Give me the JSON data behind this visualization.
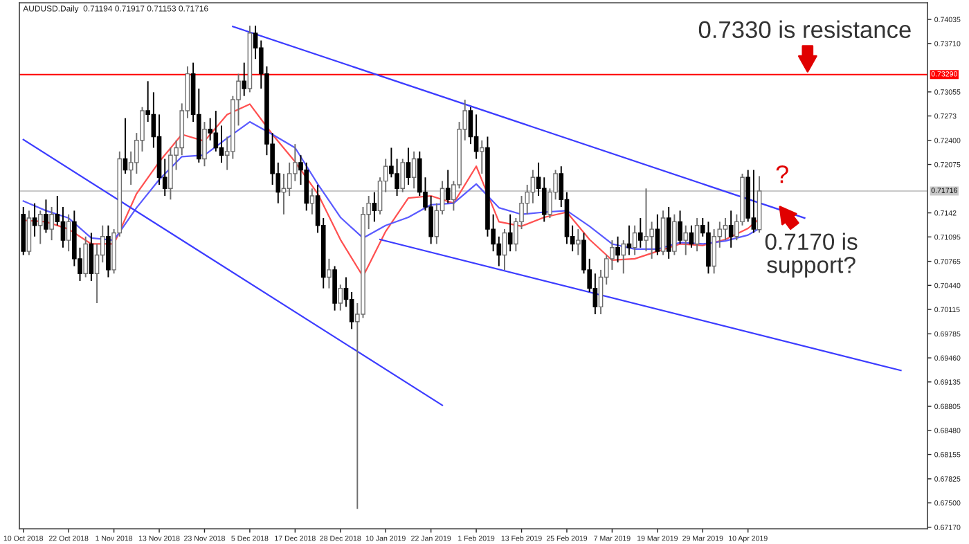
{
  "chart_data": {
    "type": "candlestick",
    "title": "AUDUSD.Daily  0.71194 0.71917 0.71153 0.71716",
    "categories": [
      "10 Oct 2018",
      null,
      null,
      null,
      null,
      null,
      null,
      null,
      "22 Oct 2018",
      null,
      null,
      null,
      null,
      null,
      null,
      null,
      "1 Nov 2018",
      null,
      null,
      null,
      null,
      null,
      null,
      null,
      "13 Nov 2018",
      null,
      null,
      null,
      null,
      null,
      null,
      null,
      "23 Nov 2018",
      null,
      null,
      null,
      null,
      null,
      null,
      null,
      "5 Dec 2018",
      null,
      null,
      null,
      null,
      null,
      null,
      null,
      "17 Dec 2018",
      null,
      null,
      null,
      null,
      null,
      null,
      null,
      "28 Dec 2018",
      null,
      null,
      null,
      null,
      null,
      null,
      null,
      "10 Jan 2019",
      null,
      null,
      null,
      null,
      null,
      null,
      null,
      "22 Jan 2019",
      null,
      null,
      null,
      null,
      null,
      null,
      null,
      "1 Feb 2019",
      null,
      null,
      null,
      null,
      null,
      null,
      null,
      "13 Feb 2019",
      null,
      null,
      null,
      null,
      null,
      null,
      null,
      "25 Feb 2019",
      null,
      null,
      null,
      null,
      null,
      null,
      null,
      "7 Mar 2019",
      null,
      null,
      null,
      null,
      null,
      null,
      null,
      "19 Mar 2019",
      null,
      null,
      null,
      null,
      null,
      null,
      null,
      "29 Mar 2019",
      null,
      null,
      null,
      null,
      null,
      null,
      null,
      "10 Apr 2019",
      null,
      null,
      null,
      null,
      null,
      null,
      null,
      null,
      null,
      null,
      null,
      null,
      null,
      null,
      null,
      null,
      null,
      null,
      null,
      null,
      null,
      null,
      null,
      null,
      null,
      null,
      null,
      null,
      null,
      null,
      null
    ],
    "ohlc": [
      [
        0.714,
        0.715,
        0.7085,
        0.709
      ],
      [
        0.709,
        0.7145,
        0.7085,
        0.7135
      ],
      [
        0.7135,
        0.7155,
        0.711,
        0.7125
      ],
      [
        0.7125,
        0.7145,
        0.71,
        0.714
      ],
      [
        0.714,
        0.716,
        0.7115,
        0.712
      ],
      [
        0.712,
        0.715,
        0.7105,
        0.714
      ],
      [
        0.714,
        0.7165,
        0.7125,
        0.713
      ],
      [
        0.713,
        0.715,
        0.7095,
        0.7105
      ],
      [
        0.7105,
        0.714,
        0.709,
        0.713
      ],
      [
        0.713,
        0.7145,
        0.707,
        0.708
      ],
      [
        0.708,
        0.7095,
        0.705,
        0.706
      ],
      [
        0.706,
        0.711,
        0.7055,
        0.71
      ],
      [
        0.71,
        0.7115,
        0.705,
        0.706
      ],
      [
        0.706,
        0.71,
        0.702,
        0.7085
      ],
      [
        0.7085,
        0.7125,
        0.7075,
        0.711
      ],
      [
        0.711,
        0.7125,
        0.7055,
        0.7065
      ],
      [
        0.7065,
        0.712,
        0.706,
        0.7115
      ],
      [
        0.7115,
        0.7225,
        0.711,
        0.7215
      ],
      [
        0.7215,
        0.727,
        0.7195,
        0.72
      ],
      [
        0.72,
        0.7225,
        0.718,
        0.721
      ],
      [
        0.721,
        0.725,
        0.7195,
        0.724
      ],
      [
        0.724,
        0.7285,
        0.7225,
        0.728
      ],
      [
        0.728,
        0.732,
        0.7265,
        0.7275
      ],
      [
        0.7275,
        0.7305,
        0.723,
        0.7245
      ],
      [
        0.7245,
        0.7275,
        0.718,
        0.719
      ],
      [
        0.719,
        0.7215,
        0.7165,
        0.7175
      ],
      [
        0.7175,
        0.723,
        0.716,
        0.722
      ],
      [
        0.722,
        0.724,
        0.72,
        0.723
      ],
      [
        0.723,
        0.729,
        0.722,
        0.728
      ],
      [
        0.728,
        0.734,
        0.727,
        0.733
      ],
      [
        0.733,
        0.7345,
        0.7265,
        0.7275
      ],
      [
        0.7275,
        0.731,
        0.721,
        0.7215
      ],
      [
        0.7215,
        0.7265,
        0.7205,
        0.7255
      ],
      [
        0.7255,
        0.727,
        0.724,
        0.725
      ],
      [
        0.725,
        0.728,
        0.7225,
        0.723
      ],
      [
        0.723,
        0.726,
        0.721,
        0.722
      ],
      [
        0.722,
        0.7245,
        0.72,
        0.7225
      ],
      [
        0.7225,
        0.73,
        0.7215,
        0.7295
      ],
      [
        0.7295,
        0.733,
        0.726,
        0.732
      ],
      [
        0.732,
        0.7345,
        0.73,
        0.731
      ],
      [
        0.731,
        0.7395,
        0.7305,
        0.7385
      ],
      [
        0.7385,
        0.7395,
        0.735,
        0.7365
      ],
      [
        0.7365,
        0.7375,
        0.731,
        0.733
      ],
      [
        0.733,
        0.734,
        0.722,
        0.7235
      ],
      [
        0.7235,
        0.725,
        0.718,
        0.7195
      ],
      [
        0.7195,
        0.721,
        0.7155,
        0.717
      ],
      [
        0.717,
        0.7195,
        0.714,
        0.7175
      ],
      [
        0.7175,
        0.721,
        0.7165,
        0.7195
      ],
      [
        0.7195,
        0.7235,
        0.7185,
        0.721
      ],
      [
        0.721,
        0.722,
        0.718,
        0.72
      ],
      [
        0.72,
        0.721,
        0.7145,
        0.7155
      ],
      [
        0.7155,
        0.7175,
        0.714,
        0.7165
      ],
      [
        0.7165,
        0.718,
        0.7115,
        0.7125
      ],
      [
        0.7125,
        0.7135,
        0.704,
        0.7055
      ],
      [
        0.7055,
        0.708,
        0.704,
        0.7065
      ],
      [
        0.7065,
        0.707,
        0.701,
        0.702
      ],
      [
        0.702,
        0.7045,
        0.701,
        0.704
      ],
      [
        0.704,
        0.7055,
        0.7015,
        0.7025
      ],
      [
        0.7025,
        0.7035,
        0.6985,
        0.6995
      ],
      [
        0.6995,
        0.702,
        0.6742,
        0.7005
      ],
      [
        0.7005,
        0.715,
        0.7,
        0.714
      ],
      [
        0.714,
        0.7165,
        0.712,
        0.7155
      ],
      [
        0.7155,
        0.717,
        0.713,
        0.7145
      ],
      [
        0.7145,
        0.719,
        0.714,
        0.7185
      ],
      [
        0.7185,
        0.7215,
        0.717,
        0.7205
      ],
      [
        0.7205,
        0.723,
        0.719,
        0.7195
      ],
      [
        0.7195,
        0.7215,
        0.7165,
        0.7175
      ],
      [
        0.7175,
        0.7215,
        0.717,
        0.721
      ],
      [
        0.721,
        0.723,
        0.718,
        0.719
      ],
      [
        0.719,
        0.7225,
        0.7175,
        0.7215
      ],
      [
        0.7215,
        0.7225,
        0.7165,
        0.717
      ],
      [
        0.717,
        0.719,
        0.7145,
        0.715
      ],
      [
        0.715,
        0.7165,
        0.71,
        0.711
      ],
      [
        0.711,
        0.7155,
        0.71,
        0.7145
      ],
      [
        0.7145,
        0.7185,
        0.714,
        0.7175
      ],
      [
        0.7175,
        0.72,
        0.7155,
        0.716
      ],
      [
        0.716,
        0.7185,
        0.7145,
        0.718
      ],
      [
        0.718,
        0.7265,
        0.7175,
        0.7255
      ],
      [
        0.7255,
        0.7295,
        0.724,
        0.728
      ],
      [
        0.728,
        0.7285,
        0.7235,
        0.7245
      ],
      [
        0.7245,
        0.7275,
        0.7215,
        0.7225
      ],
      [
        0.7225,
        0.724,
        0.7195,
        0.723
      ],
      [
        0.723,
        0.7245,
        0.711,
        0.712
      ],
      [
        0.712,
        0.714,
        0.709,
        0.71
      ],
      [
        0.71,
        0.711,
        0.707,
        0.7085
      ],
      [
        0.7085,
        0.712,
        0.7065,
        0.7115
      ],
      [
        0.7115,
        0.714,
        0.709,
        0.71
      ],
      [
        0.71,
        0.7135,
        0.709,
        0.713
      ],
      [
        0.713,
        0.7165,
        0.712,
        0.7155
      ],
      [
        0.7155,
        0.718,
        0.714,
        0.717
      ],
      [
        0.717,
        0.72,
        0.7155,
        0.719
      ],
      [
        0.719,
        0.721,
        0.7165,
        0.7175
      ],
      [
        0.7175,
        0.719,
        0.713,
        0.714
      ],
      [
        0.714,
        0.7175,
        0.7135,
        0.717
      ],
      [
        0.717,
        0.72,
        0.716,
        0.7195
      ],
      [
        0.7195,
        0.7205,
        0.715,
        0.716
      ],
      [
        0.716,
        0.717,
        0.71,
        0.711
      ],
      [
        0.711,
        0.7125,
        0.709,
        0.71
      ],
      [
        0.71,
        0.712,
        0.7085,
        0.7105
      ],
      [
        0.7105,
        0.7115,
        0.706,
        0.7065
      ],
      [
        0.7065,
        0.708,
        0.7035,
        0.704
      ],
      [
        0.704,
        0.706,
        0.7005,
        0.7015
      ],
      [
        0.7015,
        0.7065,
        0.7005,
        0.7055
      ],
      [
        0.7055,
        0.7085,
        0.7045,
        0.708
      ],
      [
        0.708,
        0.7105,
        0.7065,
        0.7095
      ],
      [
        0.7095,
        0.711,
        0.7075,
        0.7085
      ],
      [
        0.7085,
        0.7105,
        0.706,
        0.71
      ],
      [
        0.71,
        0.7125,
        0.7085,
        0.7095
      ],
      [
        0.7095,
        0.7125,
        0.7085,
        0.7115
      ],
      [
        0.7115,
        0.7135,
        0.7095,
        0.7105
      ],
      [
        0.7105,
        0.7175,
        0.709,
        0.711
      ],
      [
        0.711,
        0.713,
        0.708,
        0.712
      ],
      [
        0.712,
        0.714,
        0.7085,
        0.709
      ],
      [
        0.709,
        0.7145,
        0.7085,
        0.7135
      ],
      [
        0.7135,
        0.715,
        0.708,
        0.709
      ],
      [
        0.709,
        0.714,
        0.7085,
        0.713
      ],
      [
        0.713,
        0.7145,
        0.71,
        0.7105
      ],
      [
        0.7105,
        0.7125,
        0.7085,
        0.7115
      ],
      [
        0.7115,
        0.7125,
        0.7095,
        0.71
      ],
      [
        0.71,
        0.7135,
        0.709,
        0.7125
      ],
      [
        0.7125,
        0.7135,
        0.711,
        0.7115
      ],
      [
        0.7115,
        0.713,
        0.706,
        0.707
      ],
      [
        0.707,
        0.712,
        0.706,
        0.711
      ],
      [
        0.711,
        0.713,
        0.7095,
        0.712
      ],
      [
        0.712,
        0.7135,
        0.7105,
        0.7125
      ],
      [
        0.7125,
        0.7145,
        0.7095,
        0.711
      ],
      [
        0.711,
        0.714,
        0.7105,
        0.713
      ],
      [
        0.713,
        0.7195,
        0.7125,
        0.719
      ],
      [
        0.719,
        0.72,
        0.713,
        0.7135
      ],
      [
        0.7135,
        0.72,
        0.7115,
        0.712
      ],
      [
        0.71194,
        0.71917,
        0.71153,
        0.71716
      ],
      null,
      null,
      null,
      null,
      null,
      null,
      null,
      null,
      null,
      null,
      null,
      null,
      null,
      null,
      null,
      null,
      null,
      null,
      null,
      null,
      null,
      null,
      null,
      null,
      null,
      null,
      null,
      null,
      null
    ],
    "series": [
      {
        "type": "line",
        "color": "#ff5050",
        "values": [
          0.7132,
          null,
          null,
          null,
          0.713,
          null,
          null,
          null,
          0.712,
          null,
          null,
          null,
          0.71,
          null,
          null,
          null,
          0.71,
          null,
          null,
          null,
          0.7168,
          null,
          null,
          null,
          0.7211,
          null,
          null,
          null,
          0.7248,
          null,
          null,
          null,
          0.7239,
          null,
          null,
          null,
          0.7275,
          null,
          null,
          null,
          0.7289,
          null,
          null,
          null,
          0.7248,
          null,
          null,
          null,
          0.7211,
          null,
          null,
          null,
          0.7168,
          null,
          null,
          null,
          0.7106,
          null,
          null,
          null,
          0.7056,
          null,
          null,
          null,
          0.7117,
          null,
          null,
          null,
          0.7162,
          null,
          null,
          null,
          0.7165,
          null,
          null,
          null,
          0.7155,
          null,
          null,
          null,
          0.7205,
          null,
          null,
          null,
          0.713,
          null,
          null,
          null,
          0.7124,
          null,
          null,
          null,
          0.7136,
          null,
          null,
          null,
          0.7143,
          null,
          null,
          null,
          0.7106,
          null,
          null,
          null,
          0.7078,
          null,
          null,
          null,
          0.708,
          null,
          null,
          null,
          0.709,
          null,
          null,
          null,
          0.71,
          null,
          null,
          null,
          0.7098,
          null,
          null,
          null,
          0.7106,
          null,
          null,
          null,
          0.7121,
          null,
          0.7134,
          null,
          null,
          null,
          null,
          null,
          null,
          null,
          null,
          null,
          null,
          null,
          null,
          null,
          null,
          null,
          null,
          null,
          null,
          null,
          null,
          null,
          null,
          null,
          null,
          null,
          null,
          null,
          null,
          null
        ]
      },
      {
        "type": "line",
        "color": "#5a5aff",
        "values": [
          0.7158,
          null,
          null,
          null,
          0.7145,
          null,
          null,
          null,
          0.7135,
          null,
          null,
          null,
          0.7108,
          null,
          null,
          null,
          0.7105,
          null,
          null,
          null,
          0.7149,
          null,
          null,
          null,
          0.7187,
          null,
          null,
          null,
          0.7218,
          null,
          null,
          null,
          0.722,
          null,
          null,
          null,
          0.7243,
          null,
          null,
          null,
          0.7265,
          null,
          null,
          null,
          0.7248,
          null,
          null,
          null,
          0.723,
          null,
          null,
          null,
          0.7181,
          null,
          null,
          null,
          0.7136,
          null,
          null,
          null,
          0.7108,
          null,
          null,
          null,
          0.7125,
          null,
          null,
          null,
          0.7136,
          null,
          null,
          null,
          0.7153,
          null,
          null,
          null,
          0.7155,
          null,
          null,
          null,
          0.7181,
          null,
          null,
          null,
          0.7149,
          null,
          null,
          null,
          0.714,
          null,
          null,
          null,
          0.7143,
          null,
          null,
          null,
          0.7145,
          null,
          null,
          null,
          0.7124,
          null,
          null,
          null,
          0.71,
          null,
          null,
          null,
          0.7093,
          null,
          null,
          null,
          0.7093,
          null,
          null,
          null,
          0.7102,
          null,
          null,
          null,
          0.71,
          null,
          null,
          null,
          0.7104,
          null,
          null,
          null,
          0.7112,
          null,
          0.7121,
          null,
          null,
          null,
          null,
          null,
          null,
          null,
          null,
          null,
          null,
          null,
          null,
          null,
          null,
          null,
          null,
          null,
          null,
          null,
          null,
          null,
          null,
          null,
          null,
          null,
          null,
          null,
          null,
          null
        ]
      },
      {
        "type": "line",
        "color": "#3c3cff",
        "values": [
          null,
          null,
          null,
          null,
          null,
          null,
          null,
          null,
          null,
          null,
          null,
          null,
          null,
          null,
          null,
          null,
          null,
          null,
          null,
          null,
          null,
          null,
          null,
          null,
          null,
          null,
          null,
          null,
          null,
          null,
          null,
          null,
          null,
          null,
          null,
          null,
          null,
          0.7394,
          null,
          null,
          null,
          null,
          null,
          null,
          null,
          null,
          null,
          null,
          null,
          null,
          null,
          null,
          null,
          null,
          null,
          null,
          null,
          null,
          null,
          null,
          null,
          null,
          null,
          null,
          null,
          null,
          null,
          null,
          null,
          null,
          null,
          null,
          null,
          null,
          null,
          null,
          null,
          null,
          null,
          null,
          null,
          null,
          null,
          null,
          null,
          null,
          null,
          null,
          null,
          null,
          null,
          null,
          null,
          null,
          null,
          null,
          null,
          null,
          null,
          null,
          null,
          null,
          null,
          null,
          null,
          null,
          null,
          null,
          null,
          null,
          null,
          null,
          null,
          null,
          null,
          null,
          null,
          null,
          null,
          null,
          null,
          null,
          null,
          null,
          null,
          null,
          null,
          null,
          null,
          null,
          null,
          null,
          null,
          null,
          null,
          null,
          null,
          null,
          0.7135,
          null,
          null,
          null,
          null,
          null,
          null,
          null,
          null,
          null,
          null,
          null,
          null,
          null,
          null,
          null,
          null,
          null,
          null,
          null,
          null,
          null
        ]
      },
      {
        "type": "line",
        "color": "#3c3cff",
        "values": [
          null,
          null,
          null,
          null,
          null,
          null,
          null,
          null,
          null,
          null,
          null,
          null,
          null,
          null,
          null,
          null,
          null,
          null,
          null,
          null,
          null,
          null,
          null,
          null,
          null,
          null,
          null,
          null,
          null,
          null,
          null,
          null,
          null,
          null,
          null,
          null,
          null,
          null,
          null,
          null,
          null,
          null,
          null,
          null,
          null,
          null,
          null,
          null,
          null,
          null,
          null,
          null,
          null,
          null,
          null,
          null,
          null,
          null,
          null,
          null,
          null,
          null,
          null,
          0.7106,
          null,
          null,
          null,
          null,
          null,
          null,
          null,
          null,
          null,
          null,
          null,
          null,
          null,
          null,
          null,
          null,
          null,
          null,
          null,
          null,
          null,
          null,
          null,
          null,
          null,
          null,
          null,
          null,
          null,
          null,
          null,
          null,
          null,
          null,
          null,
          null,
          null,
          null,
          null,
          null,
          null,
          null,
          null,
          null,
          null,
          null,
          null,
          null,
          null,
          null,
          null,
          null,
          null,
          null,
          null,
          null,
          null,
          null,
          null,
          null,
          null,
          null,
          null,
          null,
          null,
          null,
          null,
          null,
          null,
          null,
          null,
          null,
          null,
          null,
          null,
          null,
          null,
          null,
          null,
          null,
          null,
          null,
          null,
          null,
          null,
          null,
          null,
          null,
          null,
          null,
          null,
          0.6929,
          null,
          null,
          null,
          null
        ]
      },
      {
        "type": "line",
        "color": "#3c3cff",
        "values": [
          0.7241,
          null,
          null,
          null,
          null,
          null,
          null,
          null,
          null,
          null,
          null,
          null,
          null,
          null,
          null,
          null,
          null,
          null,
          null,
          null,
          null,
          null,
          null,
          null,
          null,
          null,
          null,
          null,
          null,
          null,
          null,
          null,
          null,
          null,
          null,
          null,
          null,
          null,
          null,
          null,
          null,
          null,
          null,
          null,
          null,
          null,
          null,
          null,
          null,
          null,
          null,
          null,
          null,
          null,
          null,
          null,
          null,
          null,
          null,
          null,
          null,
          null,
          null,
          null,
          null,
          null,
          null,
          null,
          null,
          null,
          null,
          null,
          null,
          null,
          0.6882,
          null,
          null,
          null,
          null,
          null,
          null,
          null,
          null,
          null,
          null,
          null,
          null,
          null,
          null,
          null,
          null,
          null,
          null,
          null,
          null,
          null,
          null,
          null,
          null,
          null,
          null,
          null,
          null,
          null,
          null,
          null,
          null,
          null,
          null,
          null,
          null,
          null,
          null,
          null,
          null,
          null,
          null,
          null,
          null,
          null,
          null,
          null,
          null,
          null,
          null,
          null,
          null,
          null,
          null,
          null,
          null,
          null,
          null,
          null,
          null,
          null,
          null,
          null,
          null,
          null,
          null,
          null,
          null,
          null,
          null,
          null,
          null,
          null,
          null,
          null,
          null,
          null,
          null,
          null,
          null,
          null,
          null,
          null,
          null,
          null
        ]
      }
    ],
    "ylim": [
      0.6715,
      0.7426
    ],
    "yticks": [
      0.74035,
      {
        "value": 0.7371,
        "label": "0.73710"
      },
      0.73055,
      0.7273,
      {
        "value": 0.724,
        "label": "0.72400"
      },
      0.72075,
      0.7142,
      0.71095,
      0.70765,
      {
        "value": 0.7044,
        "label": "0.70440"
      },
      0.70115,
      0.69785,
      {
        "value": 0.6946,
        "label": "0.69460"
      },
      0.69135,
      0.68805,
      {
        "value": 0.6848,
        "label": "0.68480"
      },
      0.68155,
      0.67825,
      {
        "value": 0.675,
        "label": "0.67500"
      },
      {
        "value": 0.6717,
        "label": "0.67170"
      }
    ],
    "ref_lines": [
      {
        "axis": "y",
        "value": 0.7329,
        "label": "0.73290",
        "color": "#ff0000"
      },
      {
        "axis": "y",
        "value": 0.71716,
        "label": "0.71716",
        "color": "#c8c8c8"
      }
    ],
    "annotations": [
      "0.7330 is resistance",
      "?",
      "0.7170 is\nsupport?"
    ]
  }
}
